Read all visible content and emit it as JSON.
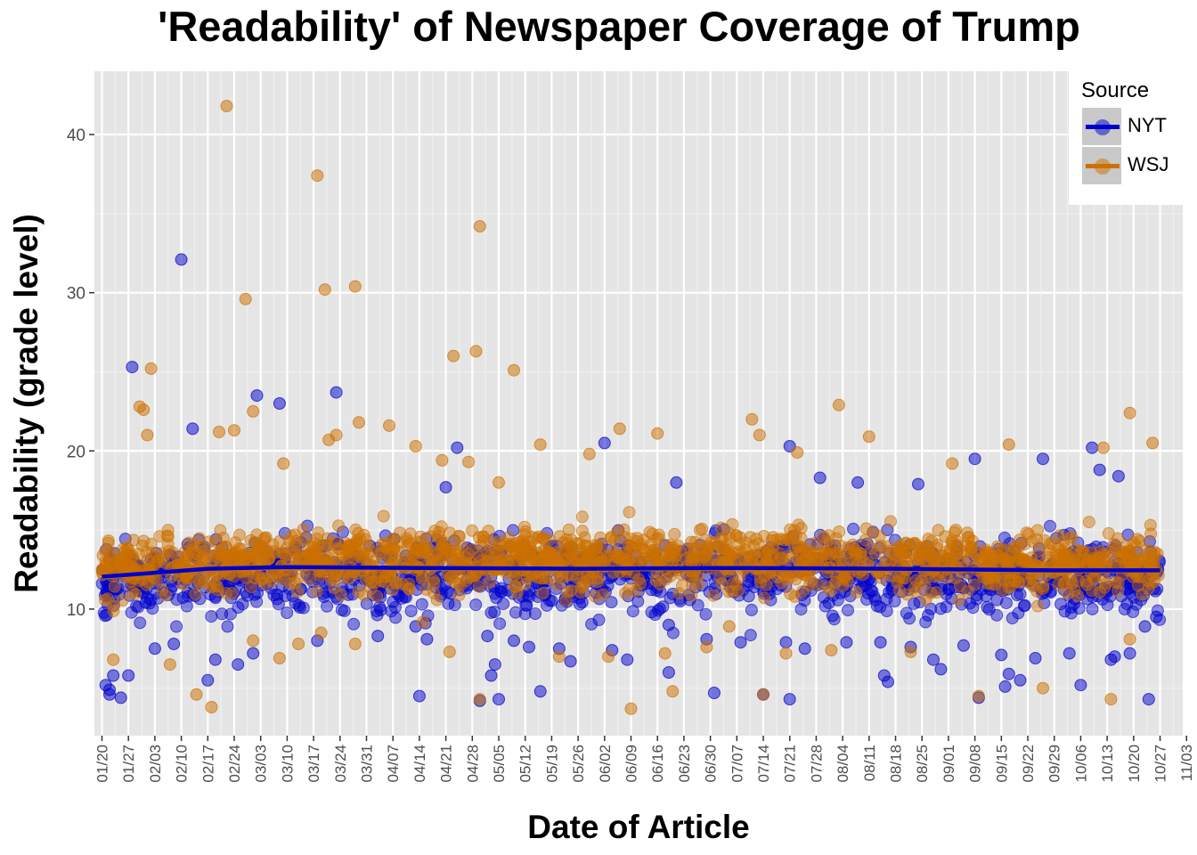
{
  "chart_data": {
    "type": "scatter",
    "title": "'Readability' of Newspaper Coverage of Trump",
    "xlabel": "Date of Article",
    "ylabel": "Readability (grade level)",
    "x_tick_labels": [
      "01/20",
      "01/27",
      "02/03",
      "02/10",
      "02/17",
      "02/24",
      "03/03",
      "03/10",
      "03/17",
      "03/24",
      "03/31",
      "04/07",
      "04/14",
      "04/21",
      "04/28",
      "05/05",
      "05/12",
      "05/19",
      "05/26",
      "06/02",
      "06/09",
      "06/16",
      "06/23",
      "06/30",
      "07/07",
      "07/14",
      "07/21",
      "07/28",
      "08/04",
      "08/11",
      "08/18",
      "08/25",
      "09/01",
      "09/08",
      "09/15",
      "09/22",
      "09/29",
      "10/06",
      "10/13",
      "10/20",
      "10/27",
      "11/03"
    ],
    "y_ticks": [
      10,
      20,
      30,
      40
    ],
    "y_lim": [
      2,
      44
    ],
    "x_lim_days": [
      -2,
      286
    ],
    "grid": true,
    "legend": {
      "title": "Source",
      "position": "top-right"
    },
    "series": [
      {
        "name": "NYT",
        "color": "#0000cc",
        "trend": [
          [
            0,
            12.05
          ],
          [
            14,
            12.3
          ],
          [
            28,
            12.55
          ],
          [
            49,
            12.65
          ],
          [
            84,
            12.6
          ],
          [
            126,
            12.55
          ],
          [
            168,
            12.6
          ],
          [
            210,
            12.55
          ],
          [
            252,
            12.45
          ],
          [
            280,
            12.45
          ]
        ],
        "outliers": [
          [
            8,
            25.3
          ],
          [
            21,
            32.1
          ],
          [
            24,
            21.4
          ],
          [
            41,
            23.5
          ],
          [
            47,
            23.0
          ],
          [
            62,
            23.7
          ],
          [
            91,
            17.7
          ],
          [
            94,
            20.2
          ],
          [
            133,
            20.5
          ],
          [
            182,
            20.3
          ],
          [
            231,
            19.5
          ],
          [
            249,
            19.5
          ],
          [
            262,
            20.2
          ],
          [
            19,
            7.8
          ],
          [
            14,
            7.5
          ],
          [
            30,
            6.8
          ],
          [
            36,
            6.5
          ],
          [
            40,
            7.2
          ],
          [
            57,
            8.0
          ],
          [
            73,
            8.3
          ],
          [
            83,
            8.9
          ],
          [
            86,
            8.1
          ],
          [
            102,
            8.3
          ],
          [
            109,
            8.0
          ],
          [
            113,
            7.6
          ],
          [
            121,
            7.5
          ],
          [
            124,
            6.7
          ],
          [
            135,
            7.4
          ],
          [
            139,
            6.8
          ],
          [
            150,
            9.0
          ],
          [
            160,
            8.1
          ],
          [
            169,
            7.9
          ],
          [
            181,
            7.9
          ],
          [
            186,
            7.5
          ],
          [
            197,
            7.9
          ],
          [
            206,
            7.9
          ],
          [
            214,
            7.6
          ],
          [
            220,
            6.8
          ],
          [
            228,
            7.7
          ],
          [
            238,
            7.1
          ],
          [
            247,
            6.9
          ],
          [
            256,
            7.2
          ],
          [
            268,
            7.0
          ],
          [
            272,
            7.2
          ],
          [
            276,
            8.9
          ],
          [
            279,
            9.5
          ],
          [
            269,
            18.4
          ],
          [
            200,
            18.0
          ],
          [
            152,
            18.0
          ],
          [
            216,
            17.9
          ],
          [
            190,
            18.3
          ],
          [
            264,
            18.8
          ],
          [
            2,
            4.9
          ],
          [
            3,
            5.8
          ],
          [
            5,
            4.4
          ],
          [
            1,
            5.2
          ],
          [
            2,
            4.6
          ],
          [
            7,
            5.8
          ],
          [
            28,
            5.5
          ],
          [
            84,
            4.5
          ],
          [
            100,
            4.2
          ],
          [
            105,
            4.3
          ],
          [
            103,
            5.8
          ],
          [
            104,
            6.5
          ],
          [
            116,
            4.8
          ],
          [
            150,
            6.0
          ],
          [
            162,
            4.7
          ],
          [
            175,
            4.6
          ],
          [
            182,
            4.3
          ],
          [
            207,
            5.8
          ],
          [
            208,
            5.4
          ],
          [
            222,
            6.2
          ],
          [
            232,
            4.4
          ],
          [
            239,
            5.1
          ],
          [
            240,
            5.9
          ],
          [
            243,
            5.5
          ],
          [
            259,
            5.2
          ],
          [
            267,
            6.8
          ],
          [
            277,
            4.3
          ]
        ]
      },
      {
        "name": "WSJ",
        "color": "#cc7000",
        "trend": [
          [
            0,
            12.0
          ],
          [
            14,
            12.25
          ],
          [
            28,
            12.5
          ],
          [
            49,
            12.6
          ],
          [
            84,
            12.55
          ],
          [
            126,
            12.5
          ],
          [
            168,
            12.55
          ],
          [
            210,
            12.5
          ],
          [
            252,
            12.4
          ],
          [
            280,
            12.4
          ]
        ],
        "outliers": [
          [
            33,
            41.8
          ],
          [
            57,
            37.4
          ],
          [
            38,
            29.6
          ],
          [
            59,
            30.2
          ],
          [
            67,
            30.4
          ],
          [
            93,
            26.0
          ],
          [
            99,
            26.3
          ],
          [
            100,
            34.2
          ],
          [
            109,
            25.1
          ],
          [
            10,
            22.8
          ],
          [
            11,
            22.6
          ],
          [
            12,
            21.0
          ],
          [
            13,
            25.2
          ],
          [
            31,
            21.2
          ],
          [
            35,
            21.3
          ],
          [
            40,
            22.5
          ],
          [
            48,
            19.2
          ],
          [
            60,
            20.7
          ],
          [
            62,
            21.0
          ],
          [
            68,
            21.8
          ],
          [
            76,
            21.6
          ],
          [
            83,
            20.3
          ],
          [
            90,
            19.4
          ],
          [
            97,
            19.3
          ],
          [
            105,
            18.0
          ],
          [
            116,
            20.4
          ],
          [
            129,
            19.8
          ],
          [
            137,
            21.4
          ],
          [
            147,
            21.1
          ],
          [
            172,
            22.0
          ],
          [
            174,
            21.0
          ],
          [
            184,
            19.9
          ],
          [
            195,
            22.9
          ],
          [
            203,
            20.9
          ],
          [
            225,
            19.2
          ],
          [
            240,
            20.4
          ],
          [
            265,
            20.2
          ],
          [
            272,
            22.4
          ],
          [
            278,
            20.5
          ],
          [
            3,
            6.8
          ],
          [
            18,
            6.5
          ],
          [
            25,
            4.6
          ],
          [
            29,
            3.8
          ],
          [
            40,
            8.0
          ],
          [
            47,
            6.9
          ],
          [
            52,
            7.8
          ],
          [
            58,
            8.5
          ],
          [
            67,
            7.8
          ],
          [
            85,
            9.2
          ],
          [
            92,
            7.3
          ],
          [
            100,
            4.3
          ],
          [
            121,
            7.0
          ],
          [
            134,
            7.0
          ],
          [
            140,
            3.7
          ],
          [
            149,
            7.2
          ],
          [
            151,
            4.8
          ],
          [
            160,
            7.6
          ],
          [
            166,
            8.9
          ],
          [
            175,
            4.6
          ],
          [
            181,
            7.2
          ],
          [
            193,
            7.4
          ],
          [
            214,
            7.3
          ],
          [
            218,
            10.6
          ],
          [
            232,
            4.5
          ],
          [
            249,
            5.0
          ],
          [
            267,
            4.3
          ],
          [
            272,
            8.1
          ]
        ]
      }
    ]
  }
}
